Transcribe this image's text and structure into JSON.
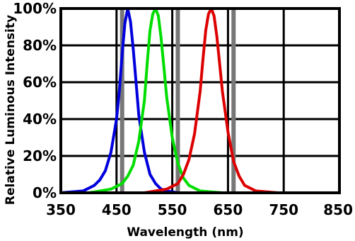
{
  "chart_data": {
    "type": "line",
    "title": "",
    "xlabel": "Wavelength (nm)",
    "ylabel": "Relative Luminous Intensity",
    "xlim": [
      350,
      850
    ],
    "ylim": [
      0,
      100
    ],
    "x_ticks": [
      350,
      450,
      550,
      650,
      750,
      850
    ],
    "x_tick_labels": [
      "350",
      "450",
      "550",
      "650",
      "750",
      "850"
    ],
    "y_ticks": [
      0,
      20,
      40,
      60,
      80,
      100
    ],
    "y_tick_labels": [
      "0%",
      "20%",
      "40%",
      "60%",
      "80%",
      "100%"
    ],
    "grid": true,
    "reference_lines_x": [
      460,
      560,
      660
    ],
    "series": [
      {
        "color": "#0000dd",
        "x": [
          350,
          390,
          410,
          420,
          430,
          440,
          450,
          455,
          460,
          465,
          470,
          475,
          480,
          485,
          490,
          500,
          510,
          520,
          530,
          540,
          560
        ],
        "y": [
          0,
          1,
          4,
          7,
          12,
          22,
          40,
          55,
          75,
          92,
          100,
          93,
          78,
          60,
          42,
          22,
          10,
          5,
          2,
          1,
          0
        ]
      },
      {
        "color": "#00dd00",
        "x": [
          400,
          440,
          460,
          470,
          480,
          490,
          500,
          505,
          510,
          515,
          520,
          525,
          530,
          535,
          540,
          550,
          560,
          570,
          580,
          600,
          640
        ],
        "y": [
          0,
          2,
          5,
          9,
          15,
          28,
          50,
          70,
          88,
          97,
          100,
          96,
          84,
          68,
          52,
          30,
          16,
          8,
          4,
          1,
          0
        ]
      },
      {
        "color": "#dd0000",
        "x": [
          500,
          540,
          560,
          570,
          580,
          590,
          600,
          605,
          610,
          615,
          620,
          625,
          630,
          635,
          640,
          650,
          660,
          670,
          680,
          700,
          740
        ],
        "y": [
          0,
          2,
          5,
          10,
          18,
          32,
          55,
          72,
          88,
          97,
          100,
          96,
          85,
          70,
          55,
          33,
          17,
          9,
          4,
          1,
          0
        ]
      }
    ]
  }
}
